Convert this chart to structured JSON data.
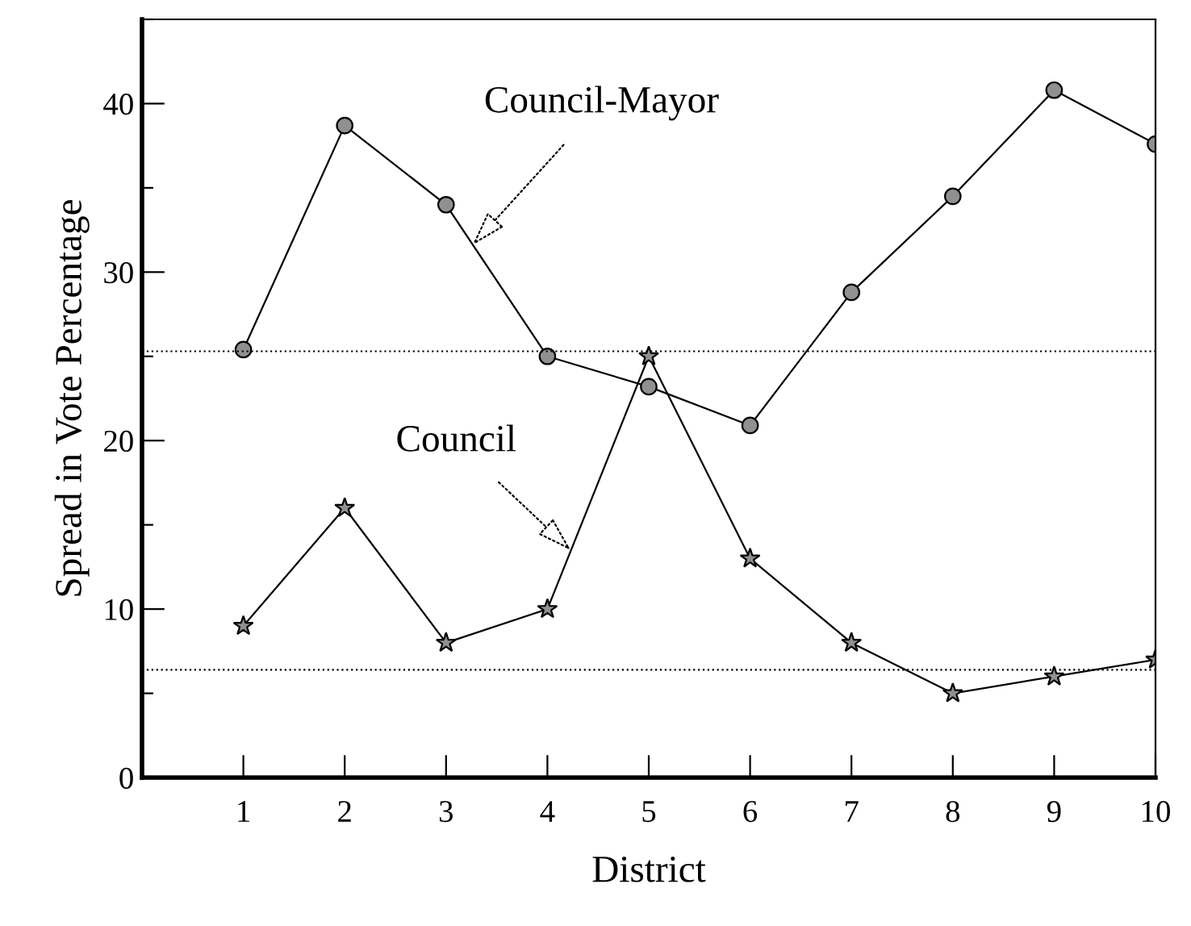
{
  "chart_data": {
    "type": "line",
    "xlabel": "District",
    "ylabel": "Spread in Vote Percentage",
    "x": [
      1,
      2,
      3,
      4,
      5,
      6,
      7,
      8,
      9,
      10
    ],
    "series": [
      {
        "color": "#000000",
        "marker": "circle",
        "values": [
          25.4,
          38.7,
          34.0,
          25.0,
          23.2,
          20.9,
          28.8,
          34.5,
          40.8,
          37.6
        ]
      },
      {
        "color": "#000000",
        "marker": "star",
        "values": [
          9,
          16,
          8,
          10,
          25,
          13,
          8,
          5,
          6,
          7
        ]
      }
    ],
    "xlim": [
      0,
      10
    ],
    "xticks": [
      1,
      2,
      3,
      4,
      5,
      6,
      7,
      8,
      9,
      10
    ],
    "ylim": [
      0,
      45
    ],
    "yticks": [
      0,
      {
        "value": 5,
        "label": null
      },
      10,
      {
        "value": 15,
        "label": null
      },
      20,
      {
        "value": 25,
        "label": null
      },
      30,
      {
        "value": 35,
        "label": null
      },
      40,
      {
        "value": 45,
        "label": null
      }
    ],
    "ref_lines": [
      {
        "axis": "y",
        "value": 25.3,
        "line_style": "dotted",
        "color": "#000000"
      },
      {
        "axis": "y",
        "value": 6.4,
        "line_style": "dotted",
        "color": "#000000"
      }
    ],
    "annotations": [
      {
        "text": "Council-Mayor",
        "x": 3.26,
        "y": 31.6
      },
      {
        "text": "Council",
        "x": 4.23,
        "y": 13.5
      }
    ],
    "grid": false,
    "legend": false,
    "line_style": "solid"
  }
}
